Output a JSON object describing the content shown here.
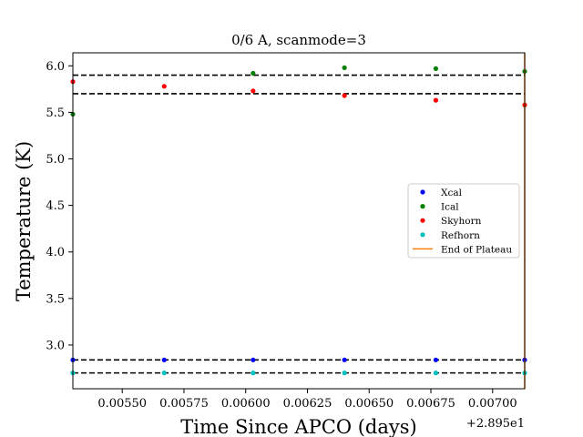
{
  "chart_data": {
    "type": "scatter",
    "title": "0/6 A, scanmode=3",
    "xlabel": "Time Since APCO (days)",
    "ylabel": "Temperature (K)",
    "x_offset_label": "+2.895e1",
    "xlim": [
      0.0053,
      0.00713
    ],
    "ylim": [
      2.53,
      6.14
    ],
    "x_ticks": [
      0.0055,
      0.00575,
      0.006,
      0.00625,
      0.0065,
      0.00675,
      0.007
    ],
    "x_tick_labels": [
      "0.00550",
      "0.00575",
      "0.00600",
      "0.00625",
      "0.00650",
      "0.00675",
      "0.00700"
    ],
    "y_ticks": [
      3.0,
      3.5,
      4.0,
      4.5,
      5.0,
      5.5,
      6.0
    ],
    "y_tick_labels": [
      "3.0",
      "3.5",
      "4.0",
      "4.5",
      "5.0",
      "5.5",
      "6.0"
    ],
    "grid": false,
    "legend_position": "center-right",
    "series": [
      {
        "name": "Xcal",
        "color": "#0000ff",
        "points": [
          [
            0.0053,
            2.84
          ],
          [
            0.00567,
            2.84
          ],
          [
            0.00603,
            2.84
          ],
          [
            0.0064,
            2.84
          ],
          [
            0.00677,
            2.84
          ],
          [
            0.00713,
            2.84
          ]
        ]
      },
      {
        "name": "Ical",
        "color": "#008000",
        "points": [
          [
            0.0053,
            5.48
          ],
          [
            0.00603,
            5.92
          ],
          [
            0.0064,
            5.98
          ],
          [
            0.00677,
            5.97
          ],
          [
            0.00713,
            5.94
          ]
        ]
      },
      {
        "name": "Skyhorn",
        "color": "#ff0000",
        "points": [
          [
            0.0053,
            5.83
          ],
          [
            0.00567,
            5.78
          ],
          [
            0.00603,
            5.73
          ],
          [
            0.0064,
            5.68
          ],
          [
            0.00677,
            5.63
          ],
          [
            0.00713,
            5.58
          ]
        ]
      },
      {
        "name": "Refhorn",
        "color": "#00bfbf",
        "points": [
          [
            0.0053,
            2.7
          ],
          [
            0.00567,
            2.7
          ],
          [
            0.00603,
            2.7
          ],
          [
            0.0064,
            2.7
          ],
          [
            0.00677,
            2.7
          ],
          [
            0.00713,
            2.7
          ]
        ]
      }
    ],
    "vertical_lines": [
      {
        "name": "End of Plateau",
        "color": "#ff7f0e",
        "x": 0.00713
      }
    ],
    "reference_lines": [
      {
        "y": 5.9,
        "color": "#000000",
        "style": "dashed"
      },
      {
        "y": 5.7,
        "color": "#000000",
        "style": "dashed"
      },
      {
        "y": 2.84,
        "color": "#000000",
        "style": "dashed"
      },
      {
        "y": 2.7,
        "color": "#000000",
        "style": "dashed"
      }
    ]
  }
}
